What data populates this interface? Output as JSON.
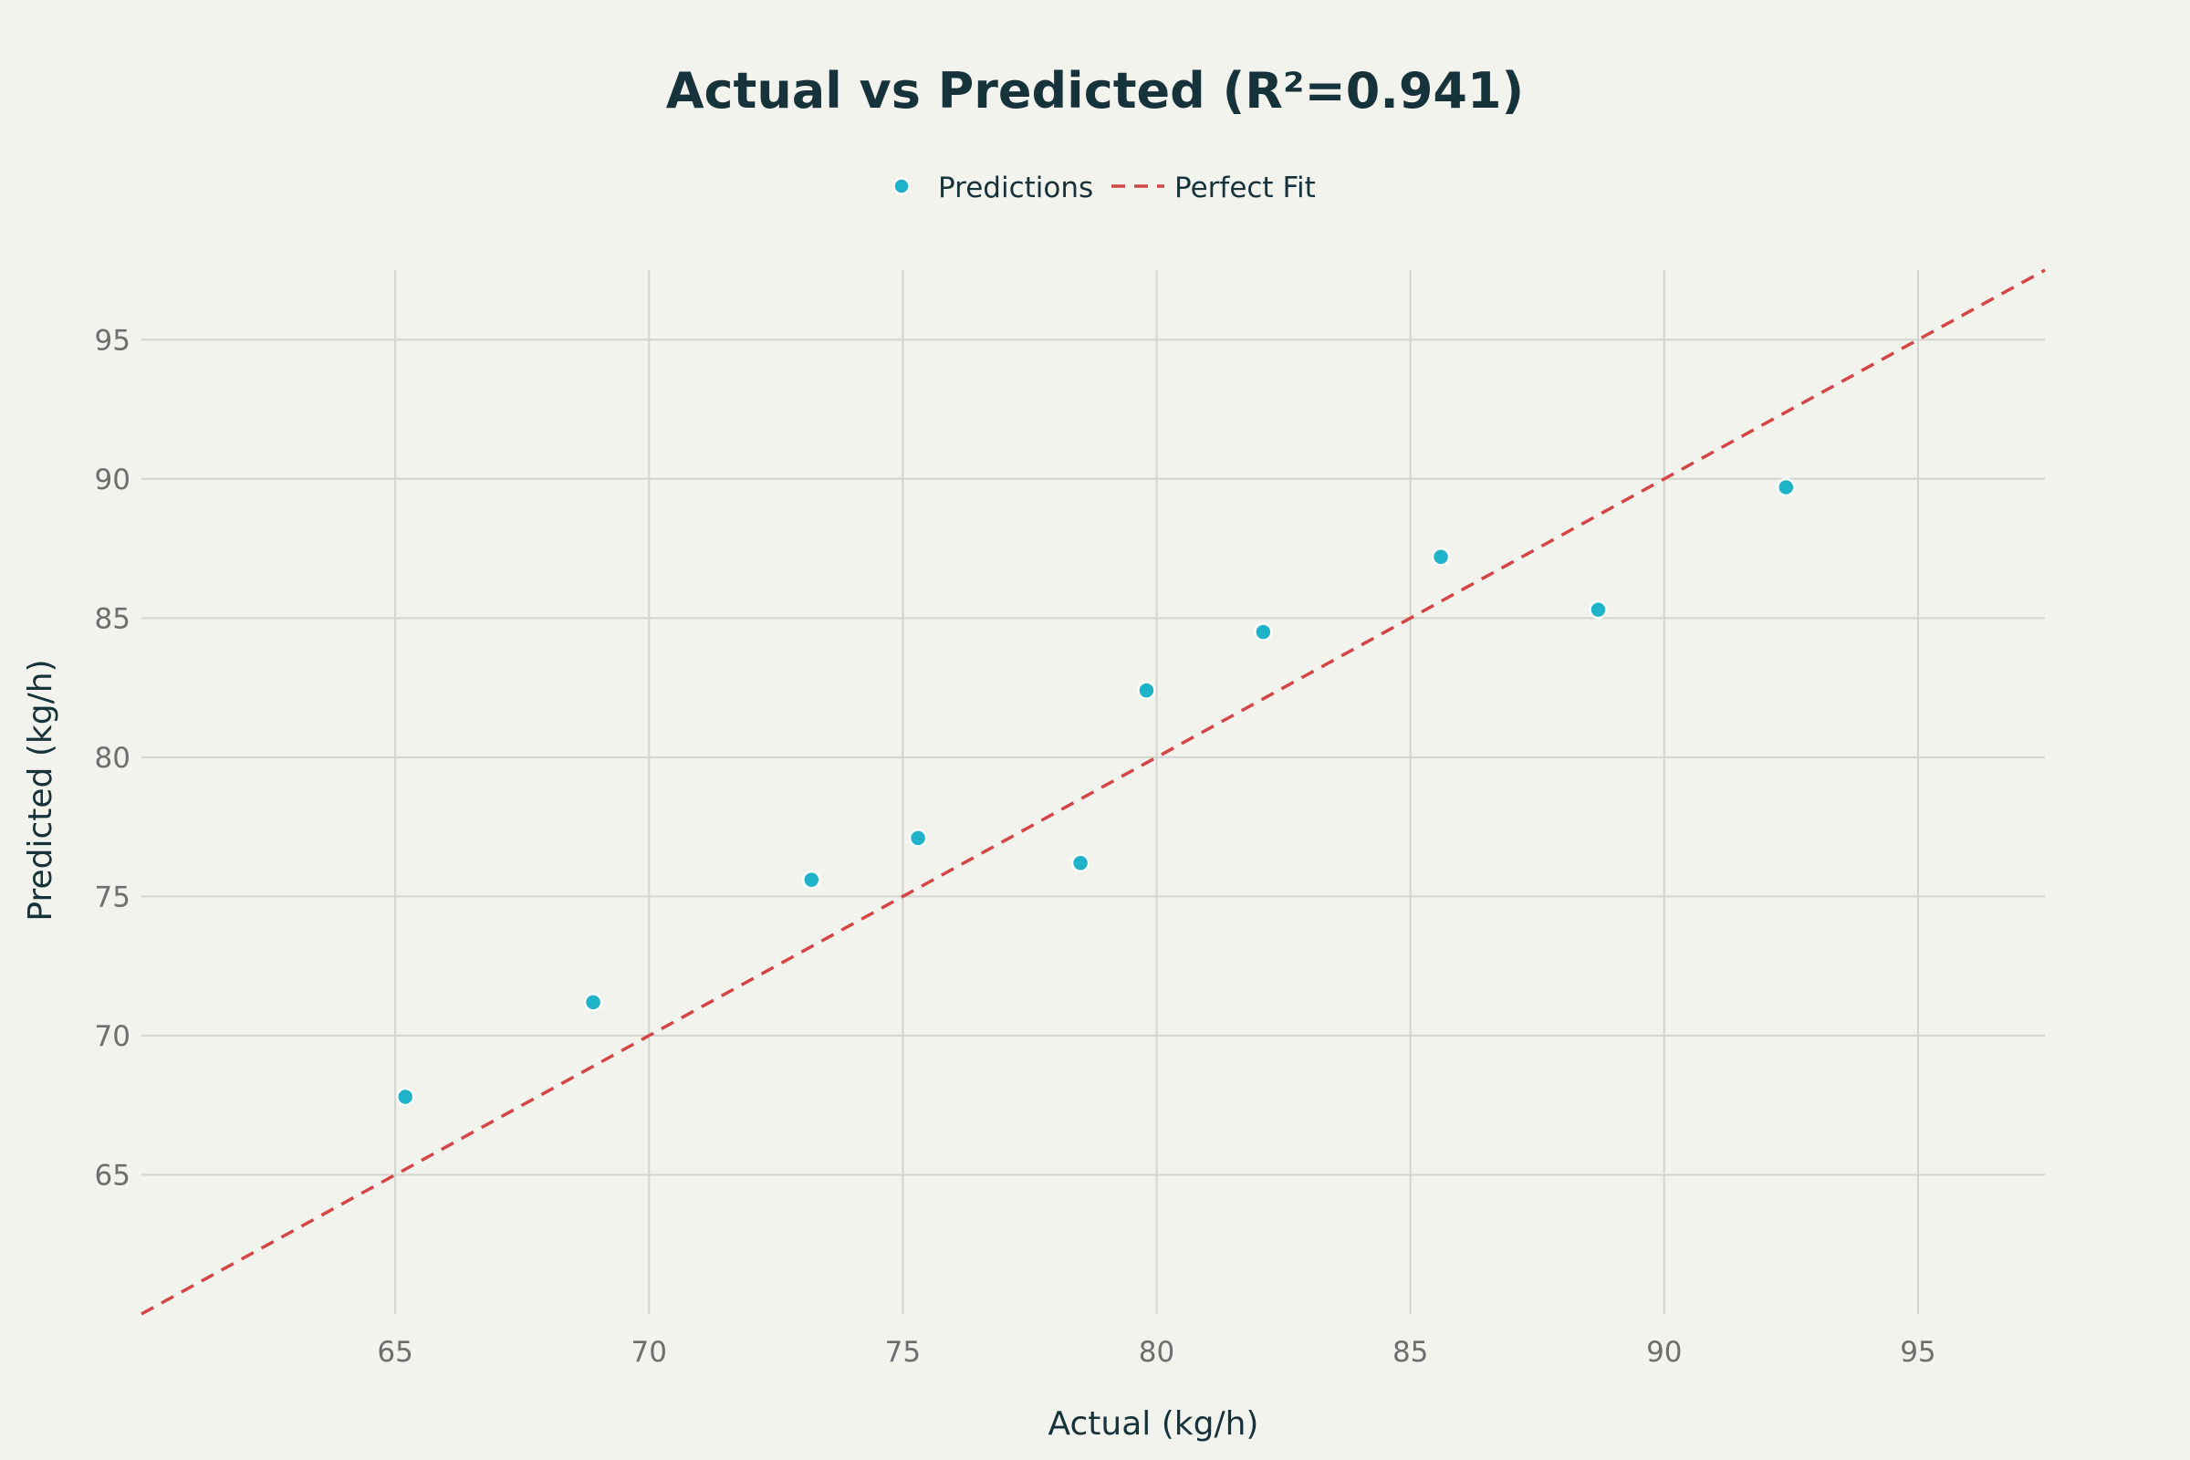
{
  "chart_data": {
    "type": "scatter",
    "title": "Actual vs Predicted (R²=0.941)",
    "xlabel": "Actual (kg/h)",
    "ylabel": "Predicted (kg/h)",
    "xlim": [
      60.0,
      97.5
    ],
    "ylim": [
      60.0,
      97.5
    ],
    "xticks": [
      65,
      70,
      75,
      80,
      85,
      90,
      95
    ],
    "yticks": [
      65,
      70,
      75,
      80,
      85,
      90,
      95
    ],
    "grid": true,
    "legend_position": "top-center",
    "series": [
      {
        "name": "Predictions",
        "kind": "markers",
        "color": "#1fb3c9",
        "x": [
          65.2,
          68.9,
          73.2,
          75.3,
          78.5,
          79.8,
          82.1,
          85.6,
          88.7,
          92.4
        ],
        "y": [
          67.8,
          71.2,
          75.6,
          77.1,
          76.2,
          82.4,
          84.5,
          87.2,
          85.3,
          89.7
        ]
      },
      {
        "name": "Perfect Fit",
        "kind": "dashed-line",
        "color": "#d64545",
        "x": [
          60.0,
          97.5
        ],
        "y": [
          60.0,
          97.5
        ]
      }
    ]
  }
}
